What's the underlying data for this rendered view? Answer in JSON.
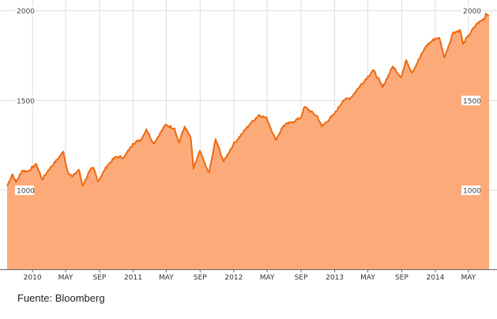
{
  "source_note": "Fuente: Bloomberg",
  "chart_data": {
    "type": "area",
    "title": "",
    "xlabel": "",
    "ylabel": "",
    "ylim": [
      560,
      2060
    ],
    "xlim": [
      "2009-09-28",
      "2014-07-15"
    ],
    "grid": true,
    "y_ticks": [
      {
        "value": 1000,
        "label": "1000"
      },
      {
        "value": 1500,
        "label": "1500"
      },
      {
        "value": 2000,
        "label": "2000"
      }
    ],
    "x_ticks": [
      {
        "date": "2010-01-01",
        "label": "2010"
      },
      {
        "date": "2010-05-01",
        "label": "MAY"
      },
      {
        "date": "2010-09-01",
        "label": "SEP"
      },
      {
        "date": "2011-01-01",
        "label": "2011"
      },
      {
        "date": "2011-05-01",
        "label": "MAY"
      },
      {
        "date": "2011-09-01",
        "label": "SEP"
      },
      {
        "date": "2012-01-01",
        "label": "2012"
      },
      {
        "date": "2012-05-01",
        "label": "MAY"
      },
      {
        "date": "2012-09-01",
        "label": "SEP"
      },
      {
        "date": "2013-01-01",
        "label": "2013"
      },
      {
        "date": "2013-05-01",
        "label": "MAY"
      },
      {
        "date": "2013-09-01",
        "label": "SEP"
      },
      {
        "date": "2014-01-01",
        "label": "2014"
      },
      {
        "date": "2014-05-01",
        "label": "MAY"
      }
    ],
    "series": [
      {
        "color": "#ee6a10",
        "fill": "#fcaa7a",
        "points": [
          [
            "2009-10-01",
            1025
          ],
          [
            "2009-10-20",
            1090
          ],
          [
            "2009-11-02",
            1045
          ],
          [
            "2009-11-25",
            1110
          ],
          [
            "2009-12-15",
            1105
          ],
          [
            "2010-01-15",
            1145
          ],
          [
            "2010-02-05",
            1060
          ],
          [
            "2010-03-01",
            1115
          ],
          [
            "2010-03-31",
            1170
          ],
          [
            "2010-04-23",
            1215
          ],
          [
            "2010-05-07",
            1110
          ],
          [
            "2010-05-25",
            1075
          ],
          [
            "2010-06-18",
            1115
          ],
          [
            "2010-07-02",
            1025
          ],
          [
            "2010-07-28",
            1110
          ],
          [
            "2010-08-10",
            1125
          ],
          [
            "2010-08-27",
            1050
          ],
          [
            "2010-09-30",
            1140
          ],
          [
            "2010-10-29",
            1185
          ],
          [
            "2010-11-30",
            1185
          ],
          [
            "2010-12-31",
            1260
          ],
          [
            "2011-01-31",
            1285
          ],
          [
            "2011-02-18",
            1340
          ],
          [
            "2011-03-16",
            1260
          ],
          [
            "2011-04-29",
            1365
          ],
          [
            "2011-05-31",
            1345
          ],
          [
            "2011-06-16",
            1265
          ],
          [
            "2011-07-07",
            1355
          ],
          [
            "2011-07-29",
            1290
          ],
          [
            "2011-08-08",
            1120
          ],
          [
            "2011-08-31",
            1220
          ],
          [
            "2011-09-22",
            1130
          ],
          [
            "2011-10-04",
            1100
          ],
          [
            "2011-10-27",
            1285
          ],
          [
            "2011-11-25",
            1160
          ],
          [
            "2011-12-30",
            1255
          ],
          [
            "2012-01-31",
            1315
          ],
          [
            "2012-02-29",
            1370
          ],
          [
            "2012-04-02",
            1420
          ],
          [
            "2012-04-30",
            1400
          ],
          [
            "2012-06-01",
            1280
          ],
          [
            "2012-06-29",
            1360
          ],
          [
            "2012-07-31",
            1380
          ],
          [
            "2012-08-31",
            1405
          ],
          [
            "2012-09-14",
            1465
          ],
          [
            "2012-10-31",
            1410
          ],
          [
            "2012-11-15",
            1355
          ],
          [
            "2012-12-31",
            1425
          ],
          [
            "2013-01-31",
            1500
          ],
          [
            "2013-02-28",
            1515
          ],
          [
            "2013-03-28",
            1570
          ],
          [
            "2013-05-21",
            1670
          ],
          [
            "2013-06-24",
            1575
          ],
          [
            "2013-07-31",
            1690
          ],
          [
            "2013-08-30",
            1630
          ],
          [
            "2013-09-18",
            1725
          ],
          [
            "2013-10-08",
            1655
          ],
          [
            "2013-11-29",
            1805
          ],
          [
            "2013-12-31",
            1845
          ],
          [
            "2014-01-15",
            1850
          ],
          [
            "2014-02-03",
            1740
          ],
          [
            "2014-03-07",
            1880
          ],
          [
            "2014-04-02",
            1890
          ],
          [
            "2014-04-11",
            1815
          ],
          [
            "2014-05-30",
            1925
          ],
          [
            "2014-06-30",
            1960
          ],
          [
            "2014-07-03",
            1985
          ],
          [
            "2014-07-15",
            1975
          ]
        ]
      }
    ]
  }
}
